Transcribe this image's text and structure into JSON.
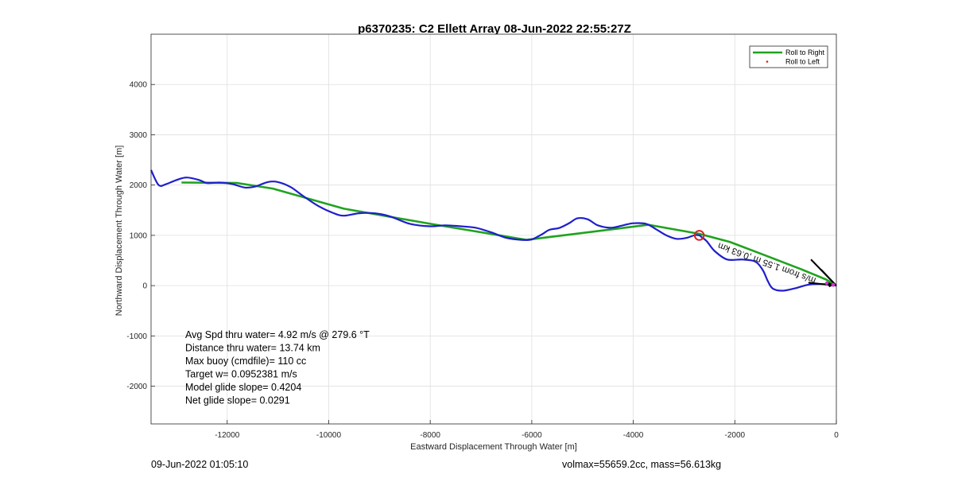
{
  "figure": {
    "footer_left": "09-Jun-2022 01:05:10",
    "footer_right": "volmax=55659.2cc, mass=56.613kg"
  },
  "stats": [
    "Avg Spd thru water=  4.92 m/s @ 279.6 °T",
    "Distance thru water= 13.74 km",
    "Max buoy (cmdfile)= 110 cc",
    "Target w= 0.0952381 m/s",
    "Model glide slope= 0.4204",
    "Net glide slope= 0.0291"
  ],
  "current_label": "m/s from 1.55 m ,0.63 km",
  "colors": {
    "roll_right": "#1fa31f",
    "roll_left": "#e41a1c",
    "track": "#1f1fcc",
    "marker": "#d62728",
    "vector": "#000000",
    "origin": "#cc33cc"
  },
  "chart_data": {
    "type": "line",
    "title": "p6370235: C2 Ellett Array 08-Jun-2022 22:55:27Z",
    "xlabel": "Eastward Displacement Through Water [m]",
    "ylabel": "Northward Displacement Through Water [m]",
    "xlim": [
      -13500,
      0
    ],
    "ylim": [
      -2750,
      5000
    ],
    "xticks": [
      -12000,
      -10000,
      -8000,
      -6000,
      -4000,
      -2000,
      0
    ],
    "yticks": [
      -2000,
      -1000,
      0,
      1000,
      2000,
      3000,
      4000
    ],
    "grid": true,
    "legend_position": "top-right",
    "legend": [
      "Roll to Right",
      "Roll to Left"
    ],
    "series": [
      {
        "name": "Roll to Right",
        "style": "line",
        "x": [
          0,
          -200,
          -700,
          -1500,
          -2100,
          -2700,
          -3700,
          -6100,
          -8000,
          -9700,
          -11100,
          -11800,
          -12900
        ],
        "y": [
          0,
          120,
          330,
          640,
          870,
          1030,
          1210,
          910,
          1230,
          1530,
          1930,
          2040,
          2050
        ]
      },
      {
        "name": "Roll to Left",
        "style": "marker",
        "x": [],
        "y": []
      },
      {
        "name": "",
        "style": "track",
        "x": [
          0,
          -100,
          -300,
          -550,
          -800,
          -1050,
          -1250,
          -1350,
          -1450,
          -1600,
          -1850,
          -2150,
          -2400,
          -2550,
          -2650,
          -2700,
          -2800,
          -2950,
          -3150,
          -3350,
          -3550,
          -3750,
          -4000,
          -4200,
          -4450,
          -4700,
          -4900,
          -5100,
          -5250,
          -5450,
          -5650,
          -5800,
          -6000,
          -6200,
          -6500,
          -6800,
          -7100,
          -7400,
          -7700,
          -8000,
          -8400,
          -8800,
          -9100,
          -9400,
          -9700,
          -9900,
          -10200,
          -10500,
          -10750,
          -11000,
          -11200,
          -11450,
          -11650,
          -11900,
          -12150,
          -12400,
          -12550,
          -12800,
          -13000,
          -13200,
          -13350,
          -13500
        ],
        "y": [
          0,
          20,
          30,
          20,
          -50,
          -100,
          -60,
          90,
          310,
          480,
          520,
          520,
          690,
          880,
          960,
          1000,
          1000,
          950,
          930,
          1000,
          1120,
          1230,
          1240,
          1200,
          1150,
          1200,
          1320,
          1340,
          1250,
          1150,
          1110,
          1020,
          920,
          910,
          950,
          1060,
          1150,
          1180,
          1200,
          1180,
          1230,
          1380,
          1440,
          1440,
          1390,
          1440,
          1580,
          1780,
          1960,
          2060,
          2060,
          1970,
          1950,
          2020,
          2050,
          2040,
          2100,
          2150,
          2100,
          2020,
          2000,
          2300
        ]
      }
    ],
    "marker": {
      "x": -2700,
      "y": 1000
    }
  }
}
